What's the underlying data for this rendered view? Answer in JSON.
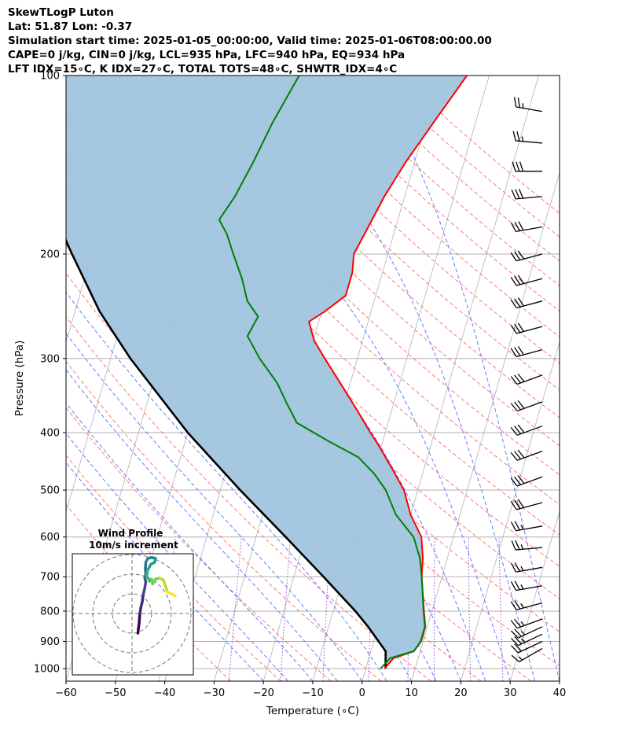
{
  "header": {
    "title": "SkewTLogP Luton",
    "location": "Lat: 51.87   Lon: -0.37",
    "times": "Simulation start time: 2025-01-05_00:00:00, Valid time: 2025-01-06T08:00:00.00",
    "params": "CAPE=0 j/kg, CIN=0 j/kg, LCL=935 hPa, LFC=940 hPa, EQ=934 hPa",
    "indices": "LFT IDX=15$^\\circ$C, K IDX=27$^\\circ$C, TOTAL TOTS=48$^\\circ$C, SHWTR_IDX=4$^\\circ$C"
  },
  "header_display": {
    "indices": "LFT IDX=15∘C, K IDX=27∘C, TOTAL TOTS=48∘C, SHWTR_IDX=4∘C"
  },
  "chart_data": {
    "type": "line",
    "subtype": "skew-T log-P",
    "xlabel": "Temperature (∘C)",
    "ylabel": "Pressure (hPa)",
    "xlim": [
      -60,
      40
    ],
    "ylim_pressure": [
      1050,
      100
    ],
    "x_ticks": [
      "−60",
      "−50",
      "−40",
      "−30",
      "−20",
      "−10",
      "0",
      "10",
      "20",
      "30",
      "40"
    ],
    "x_tick_values": [
      -60,
      -50,
      -40,
      -30,
      -20,
      -10,
      0,
      10,
      20,
      30,
      40
    ],
    "y_ticks": [
      "100",
      "200",
      "300",
      "400",
      "500",
      "600",
      "700",
      "800",
      "900",
      "1000"
    ],
    "y_tick_values": [
      100,
      200,
      300,
      400,
      500,
      600,
      700,
      800,
      900,
      1000
    ],
    "grid": true,
    "skew_x_per_decade_hpa": 35,
    "colors": {
      "temperature": "#ff0000",
      "dewpoint": "#008000",
      "parcel": "#000000",
      "shade": "#a0c4de",
      "dry_adiabats": "#ff6b6b",
      "moist_adiabats": "#5a6bff",
      "mixing_ratio": "#9a4fd6",
      "isotherms": "#b0b0b0"
    },
    "temperature_profile": [
      {
        "p": 1000,
        "t": 3.8
      },
      {
        "p": 960,
        "t": 5.0
      },
      {
        "p": 935,
        "t": 8.7
      },
      {
        "p": 900,
        "t": 9.6
      },
      {
        "p": 850,
        "t": 9.6
      },
      {
        "p": 800,
        "t": 8.4
      },
      {
        "p": 700,
        "t": 5.9
      },
      {
        "p": 650,
        "t": 5.0
      },
      {
        "p": 600,
        "t": 3.5
      },
      {
        "p": 550,
        "t": 0.0
      },
      {
        "p": 500,
        "t": -2.8
      },
      {
        "p": 460,
        "t": -6.5
      },
      {
        "p": 420,
        "t": -10.6
      },
      {
        "p": 400,
        "t": -13.0
      },
      {
        "p": 370,
        "t": -16.6
      },
      {
        "p": 340,
        "t": -20.6
      },
      {
        "p": 300,
        "t": -26.6
      },
      {
        "p": 280,
        "t": -29.8
      },
      {
        "p": 260,
        "t": -32.0
      },
      {
        "p": 250,
        "t": -29.4
      },
      {
        "p": 235,
        "t": -26.1
      },
      {
        "p": 215,
        "t": -26.1
      },
      {
        "p": 200,
        "t": -26.9
      },
      {
        "p": 185,
        "t": -25.9
      },
      {
        "p": 160,
        "t": -24.1
      },
      {
        "p": 140,
        "t": -21.8
      },
      {
        "p": 120,
        "t": -18.5
      },
      {
        "p": 100,
        "t": -14.5
      }
    ],
    "dewpoint_profile": [
      {
        "p": 1000,
        "t": 3.0
      },
      {
        "p": 960,
        "t": 4.3
      },
      {
        "p": 935,
        "t": 8.7
      },
      {
        "p": 900,
        "t": 9.5
      },
      {
        "p": 850,
        "t": 9.5
      },
      {
        "p": 800,
        "t": 8.3
      },
      {
        "p": 700,
        "t": 5.9
      },
      {
        "p": 650,
        "t": 4.4
      },
      {
        "p": 600,
        "t": 1.9
      },
      {
        "p": 550,
        "t": -3.0
      },
      {
        "p": 500,
        "t": -6.5
      },
      {
        "p": 470,
        "t": -9.7
      },
      {
        "p": 440,
        "t": -14.0
      },
      {
        "p": 415,
        "t": -20.6
      },
      {
        "p": 385,
        "t": -28.5
      },
      {
        "p": 355,
        "t": -31.9
      },
      {
        "p": 330,
        "t": -34.8
      },
      {
        "p": 300,
        "t": -39.8
      },
      {
        "p": 275,
        "t": -43.6
      },
      {
        "p": 255,
        "t": -42.6
      },
      {
        "p": 240,
        "t": -45.7
      },
      {
        "p": 220,
        "t": -48.1
      },
      {
        "p": 200,
        "t": -51.3
      },
      {
        "p": 185,
        "t": -53.8
      },
      {
        "p": 175,
        "t": -56.2
      },
      {
        "p": 160,
        "t": -54.4
      },
      {
        "p": 140,
        "t": -52.7
      },
      {
        "p": 120,
        "t": -51.1
      },
      {
        "p": 100,
        "t": -48.5
      }
    ],
    "parcel_profile": [
      {
        "p": 1000,
        "t": 4.0
      },
      {
        "p": 935,
        "t": 3.0
      },
      {
        "p": 900,
        "t": 1.0
      },
      {
        "p": 850,
        "t": -2.0
      },
      {
        "p": 800,
        "t": -5.5
      },
      {
        "p": 700,
        "t": -14.0
      },
      {
        "p": 600,
        "t": -24.0
      },
      {
        "p": 500,
        "t": -36.0
      },
      {
        "p": 400,
        "t": -50.0
      },
      {
        "p": 300,
        "t": -66.0
      },
      {
        "p": 250,
        "t": -75.0
      },
      {
        "p": 200,
        "t": -84.0
      },
      {
        "p": 150,
        "t": -95.0
      },
      {
        "p": 100,
        "t": -113.0
      }
    ],
    "wind_barbs": [
      {
        "p": 925,
        "dir": 240,
        "kt": 15
      },
      {
        "p": 900,
        "dir": 245,
        "kt": 20
      },
      {
        "p": 875,
        "dir": 245,
        "kt": 25
      },
      {
        "p": 850,
        "dir": 245,
        "kt": 25
      },
      {
        "p": 825,
        "dir": 250,
        "kt": 25
      },
      {
        "p": 775,
        "dir": 255,
        "kt": 25
      },
      {
        "p": 725,
        "dir": 260,
        "kt": 25
      },
      {
        "p": 675,
        "dir": 260,
        "kt": 25
      },
      {
        "p": 625,
        "dir": 265,
        "kt": 25
      },
      {
        "p": 575,
        "dir": 260,
        "kt": 25
      },
      {
        "p": 525,
        "dir": 255,
        "kt": 30
      },
      {
        "p": 475,
        "dir": 250,
        "kt": 30
      },
      {
        "p": 430,
        "dir": 250,
        "kt": 30
      },
      {
        "p": 390,
        "dir": 250,
        "kt": 30
      },
      {
        "p": 355,
        "dir": 250,
        "kt": 30
      },
      {
        "p": 320,
        "dir": 250,
        "kt": 30
      },
      {
        "p": 290,
        "dir": 255,
        "kt": 30
      },
      {
        "p": 265,
        "dir": 255,
        "kt": 30
      },
      {
        "p": 240,
        "dir": 255,
        "kt": 30
      },
      {
        "p": 220,
        "dir": 255,
        "kt": 30
      },
      {
        "p": 200,
        "dir": 255,
        "kt": 30
      },
      {
        "p": 180,
        "dir": 260,
        "kt": 30
      },
      {
        "p": 160,
        "dir": 265,
        "kt": 30
      },
      {
        "p": 145,
        "dir": 270,
        "kt": 30
      },
      {
        "p": 130,
        "dir": 275,
        "kt": 25
      },
      {
        "p": 115,
        "dir": 280,
        "kt": 25
      }
    ],
    "hodograph": {
      "title": "Wind Profile",
      "subtitle": "10m/s increment",
      "ring_step_ms": 10,
      "rings": 3,
      "colormap": "viridis",
      "points": [
        {
          "u": 3.0,
          "v": -10.0
        },
        {
          "u": 3.2,
          "v": -8.0
        },
        {
          "u": 3.6,
          "v": -5.0
        },
        {
          "u": 4.0,
          "v": 0.0
        },
        {
          "u": 4.5,
          "v": 3.0
        },
        {
          "u": 5.2,
          "v": 6.0
        },
        {
          "u": 5.8,
          "v": 10.0
        },
        {
          "u": 6.5,
          "v": 13.0
        },
        {
          "u": 7.0,
          "v": 16.0
        },
        {
          "u": 6.5,
          "v": 18.0
        },
        {
          "u": 7.0,
          "v": 20.0
        },
        {
          "u": 6.8,
          "v": 23.0
        },
        {
          "u": 7.0,
          "v": 26.0
        },
        {
          "u": 8.0,
          "v": 28.0
        },
        {
          "u": 10.0,
          "v": 28.5
        },
        {
          "u": 12.0,
          "v": 28.0
        },
        {
          "u": 11.5,
          "v": 26.0
        },
        {
          "u": 9.5,
          "v": 25.0
        },
        {
          "u": 8.0,
          "v": 22.0
        },
        {
          "u": 7.5,
          "v": 19.0
        },
        {
          "u": 9.0,
          "v": 16.5
        },
        {
          "u": 10.0,
          "v": 17.5
        },
        {
          "u": 10.5,
          "v": 15.0
        },
        {
          "u": 12.0,
          "v": 17.5
        },
        {
          "u": 14.0,
          "v": 18.0
        },
        {
          "u": 16.0,
          "v": 17.0
        },
        {
          "u": 17.0,
          "v": 14.0
        },
        {
          "u": 18.0,
          "v": 11.0
        },
        {
          "u": 20.0,
          "v": 10.0
        },
        {
          "u": 22.0,
          "v": 9.0
        }
      ]
    }
  }
}
